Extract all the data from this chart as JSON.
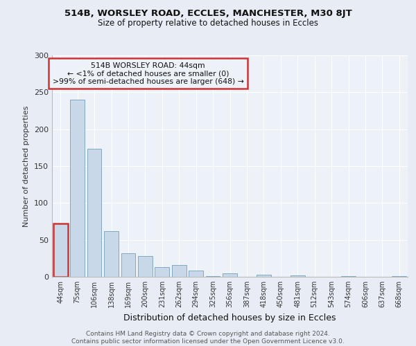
{
  "title1": "514B, WORSLEY ROAD, ECCLES, MANCHESTER, M30 8JT",
  "title2": "Size of property relative to detached houses in Eccles",
  "xlabel": "Distribution of detached houses by size in Eccles",
  "ylabel": "Number of detached properties",
  "categories": [
    "44sqm",
    "75sqm",
    "106sqm",
    "138sqm",
    "169sqm",
    "200sqm",
    "231sqm",
    "262sqm",
    "294sqm",
    "325sqm",
    "356sqm",
    "387sqm",
    "418sqm",
    "450sqm",
    "481sqm",
    "512sqm",
    "543sqm",
    "574sqm",
    "606sqm",
    "637sqm",
    "668sqm"
  ],
  "values": [
    72,
    240,
    173,
    62,
    32,
    28,
    13,
    16,
    8,
    1,
    5,
    0,
    3,
    0,
    2,
    0,
    0,
    1,
    0,
    0,
    1
  ],
  "bar_color": "#c8d8e8",
  "bar_edge_color": "#6090b0",
  "highlight_color": "#cc3333",
  "highlight_index": 0,
  "annotation_text": "514B WORSLEY ROAD: 44sqm\n← <1% of detached houses are smaller (0)\n>99% of semi-detached houses are larger (648) →",
  "ylim": [
    0,
    300
  ],
  "yticks": [
    0,
    50,
    100,
    150,
    200,
    250,
    300
  ],
  "footnote": "Contains HM Land Registry data © Crown copyright and database right 2024.\nContains public sector information licensed under the Open Government Licence v3.0.",
  "bg_color": "#e8edf5",
  "plot_bg_color": "#edf1f8",
  "grid_color": "#ffffff",
  "title1_fontsize": 9.5,
  "title2_fontsize": 8.5,
  "ylabel_fontsize": 8,
  "xlabel_fontsize": 9,
  "tick_fontsize": 7,
  "ytick_fontsize": 8,
  "ann_fontsize": 7.8,
  "footnote_fontsize": 6.5
}
